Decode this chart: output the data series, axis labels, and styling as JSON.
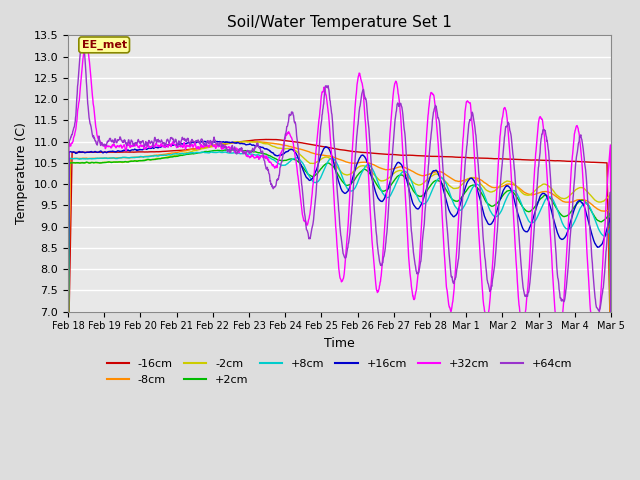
{
  "title": "Soil/Water Temperature Set 1",
  "xlabel": "Time",
  "ylabel": "Temperature (C)",
  "ylim": [
    7.0,
    13.5
  ],
  "xlim": [
    18,
    33
  ],
  "annotation_text": "EE_met",
  "annotation_color": "#8B0000",
  "annotation_bg": "#FFFF99",
  "series_colors": {
    "-16cm": "#CC0000",
    "-8cm": "#FF8C00",
    "-2cm": "#CCCC00",
    "+2cm": "#00BB00",
    "+8cm": "#00CCCC",
    "+16cm": "#0000CC",
    "+32cm": "#FF00FF",
    "+64cm": "#9933CC"
  },
  "bg_color": "#DDDDDD",
  "plot_bg": "#E8E8E8",
  "grid_color": "#FFFFFF",
  "n_points": 1600,
  "start_day": 18,
  "end_day": 33
}
